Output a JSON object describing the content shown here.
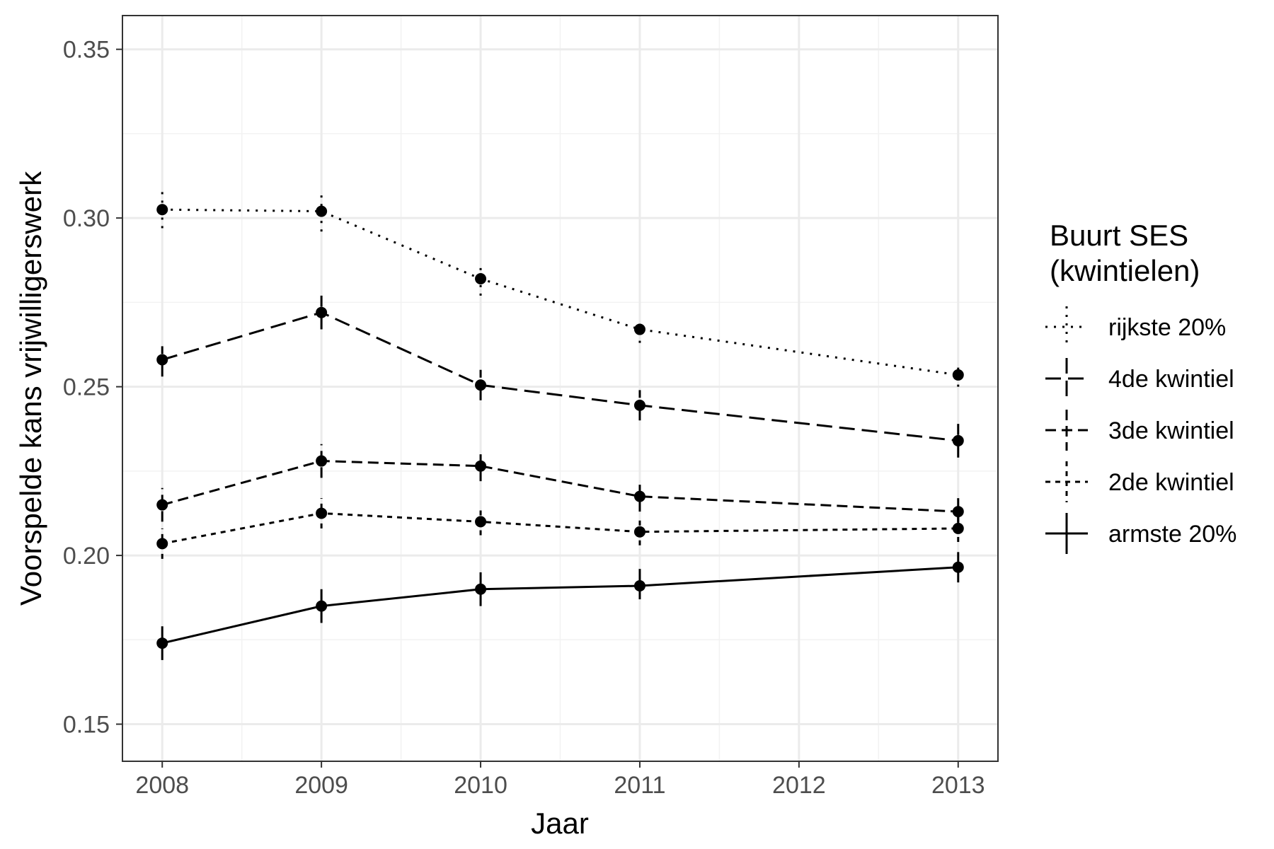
{
  "chart_data": {
    "type": "line",
    "xlabel": "Jaar",
    "ylabel": "Voorspelde kans vrijwilligerswerk",
    "x": [
      2008,
      2009,
      2010,
      2011,
      2013
    ],
    "xlim": [
      2007.75,
      2013.25
    ],
    "xticks": [
      "2008",
      "2009",
      "2010",
      "2011",
      "2012",
      "2013"
    ],
    "ylim": [
      0.139,
      0.36
    ],
    "yticks": [
      "0.15",
      "0.20",
      "0.25",
      "0.30",
      "0.35"
    ],
    "grid": true,
    "legend": {
      "title_line1": "Buurt SES",
      "title_line2": "(kwintielen)",
      "placement": "right"
    },
    "series": [
      {
        "name": "rijkste 20%",
        "linestyle": "dotted",
        "values": [
          0.3025,
          0.302,
          0.282,
          0.267,
          0.2535
        ],
        "lower": [
          0.297,
          0.296,
          0.277,
          0.263,
          0.25
        ],
        "upper": [
          0.308,
          0.308,
          0.287,
          0.27,
          0.257
        ]
      },
      {
        "name": "4de kwintiel",
        "linestyle": "longdash",
        "values": [
          0.258,
          0.272,
          0.2505,
          0.2445,
          0.234
        ],
        "lower": [
          0.253,
          0.267,
          0.246,
          0.24,
          0.229
        ],
        "upper": [
          0.262,
          0.277,
          0.255,
          0.249,
          0.239
        ]
      },
      {
        "name": "3de kwintiel",
        "linestyle": "dashed",
        "values": [
          0.215,
          0.228,
          0.2265,
          0.2175,
          0.213
        ],
        "lower": [
          0.21,
          0.223,
          0.222,
          0.213,
          0.209
        ],
        "upper": [
          0.22,
          0.233,
          0.231,
          0.222,
          0.217
        ]
      },
      {
        "name": "2de kwintiel",
        "linestyle": "shortdash",
        "values": [
          0.2035,
          0.2125,
          0.21,
          0.207,
          0.208
        ],
        "lower": [
          0.199,
          0.208,
          0.206,
          0.203,
          0.204
        ],
        "upper": [
          0.208,
          0.217,
          0.214,
          0.211,
          0.212
        ]
      },
      {
        "name": "armste 20%",
        "linestyle": "solid",
        "values": [
          0.174,
          0.185,
          0.19,
          0.191,
          0.1965
        ],
        "lower": [
          0.169,
          0.18,
          0.185,
          0.187,
          0.192
        ],
        "upper": [
          0.179,
          0.19,
          0.195,
          0.196,
          0.201
        ]
      }
    ]
  }
}
